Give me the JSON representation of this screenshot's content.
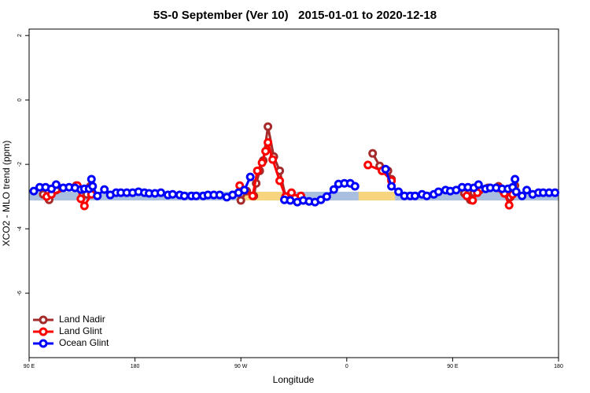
{
  "chart_data": {
    "type": "line",
    "title": "5S-0 September (Ver 10)   2015-01-01 to 2020-12-18",
    "x_label": "Longitude",
    "y_label": "XCO2 - MLO trend (ppm)",
    "xlim": [
      90,
      540
    ],
    "ylim": [
      -8,
      2.2
    ],
    "xticks": [
      {
        "value": 90,
        "label": "90 E"
      },
      {
        "value": 180,
        "label": "180"
      },
      {
        "value": 270,
        "label": "90 W"
      },
      {
        "value": 360,
        "label": "0"
      },
      {
        "value": 450,
        "label": "90 E"
      },
      {
        "value": 540,
        "label": "180"
      }
    ],
    "yticks": [
      2,
      0,
      -2,
      -4,
      -6
    ],
    "legend": "bottomleft",
    "band": {
      "range": [
        -3.12,
        -2.85
      ],
      "segments": [
        {
          "x": [
            90,
            540
          ],
          "color": "#a9bfdf"
        },
        {
          "x": [
            272,
            305
          ],
          "color": "#f7d57e"
        },
        {
          "x": [
            370,
            401
          ],
          "color": "#f7d57e"
        }
      ]
    },
    "series": [
      {
        "name": "Land Nadir",
        "color": "#a52a2a",
        "x": [
          102,
          107,
          113,
          130,
          135,
          139,
          142,
          null,
          270,
          275,
          281,
          283,
          286,
          289,
          293,
          298,
          303,
          308,
          null,
          382,
          388,
          392,
          395,
          398,
          null,
          460,
          465,
          468,
          473,
          480,
          489,
          493,
          499,
          503
        ],
        "values": [
          -2.93,
          -3.1,
          -2.8,
          -2.66,
          -2.78,
          -2.93,
          -2.68,
          null,
          -3.12,
          -2.83,
          -2.98,
          -2.59,
          -2.2,
          -1.88,
          -0.83,
          -1.76,
          -2.2,
          -3.0,
          null,
          -1.66,
          -2.05,
          -2.15,
          -2.2,
          -2.46,
          null,
          -2.9,
          -3.1,
          -2.88,
          -2.8,
          -2.73,
          -2.68,
          -2.83,
          -3.02,
          -2.66
        ]
      },
      {
        "name": "Land Glint",
        "color": "#ff0000",
        "x": [
          105,
          109,
          131,
          134,
          137,
          143,
          null,
          269,
          280,
          284,
          288,
          291,
          293,
          297,
          303,
          308,
          313,
          316,
          321,
          null,
          378,
          390,
          398,
          null,
          462,
          467,
          471,
          489,
          494,
          498,
          501
        ],
        "values": [
          -3.0,
          -2.93,
          -2.66,
          -3.07,
          -3.29,
          -2.93,
          null,
          -2.66,
          -2.98,
          -2.2,
          -1.95,
          -1.59,
          -1.32,
          -1.85,
          -2.51,
          -3.0,
          -2.88,
          -3.05,
          -2.98,
          null,
          -2.02,
          -2.2,
          -2.51,
          null,
          -2.98,
          -3.12,
          -2.88,
          -2.73,
          -2.9,
          -3.27,
          -2.93
        ]
      },
      {
        "name": "Ocean Glint",
        "color": "#0000ff",
        "x": [
          94,
          99,
          104,
          109,
          113,
          119,
          124,
          129,
          134,
          137,
          141,
          143,
          144,
          148,
          154,
          159,
          164,
          168,
          173,
          178,
          183,
          188,
          192,
          197,
          202,
          208,
          212,
          218,
          222,
          228,
          232,
          238,
          242,
          247,
          252,
          258,
          263,
          268,
          273,
          278,
          null,
          307,
          312,
          318,
          323,
          328,
          333,
          338,
          343,
          349,
          353,
          358,
          363,
          367,
          null,
          393,
          398,
          404,
          409,
          414,
          418,
          424,
          428,
          434,
          438,
          444,
          448,
          453,
          458,
          463,
          468,
          472,
          478,
          482,
          487,
          492,
          497,
          501,
          503,
          504,
          509,
          513,
          518,
          523,
          527,
          532,
          537
        ],
        "values": [
          -2.83,
          -2.71,
          -2.71,
          -2.76,
          -2.63,
          -2.73,
          -2.71,
          -2.73,
          -2.78,
          -2.76,
          -2.76,
          -2.46,
          -2.68,
          -2.98,
          -2.78,
          -2.95,
          -2.88,
          -2.88,
          -2.88,
          -2.88,
          -2.85,
          -2.88,
          -2.9,
          -2.9,
          -2.88,
          -2.95,
          -2.93,
          -2.95,
          -2.98,
          -2.98,
          -2.98,
          -2.98,
          -2.95,
          -2.95,
          -2.95,
          -3.02,
          -2.95,
          -2.88,
          -2.8,
          -2.39,
          null,
          -3.1,
          -3.12,
          -3.17,
          -3.12,
          -3.15,
          -3.17,
          -3.1,
          -3.0,
          -2.78,
          -2.61,
          -2.59,
          -2.59,
          -2.68,
          null,
          -2.15,
          -2.68,
          -2.85,
          -2.98,
          -2.98,
          -2.98,
          -2.93,
          -2.98,
          -2.93,
          -2.85,
          -2.8,
          -2.83,
          -2.8,
          -2.71,
          -2.71,
          -2.73,
          -2.63,
          -2.76,
          -2.73,
          -2.73,
          -2.76,
          -2.76,
          -2.71,
          -2.46,
          -2.85,
          -2.98,
          -2.8,
          -2.93,
          -2.88,
          -2.88,
          -2.88,
          -2.88
        ]
      }
    ]
  }
}
